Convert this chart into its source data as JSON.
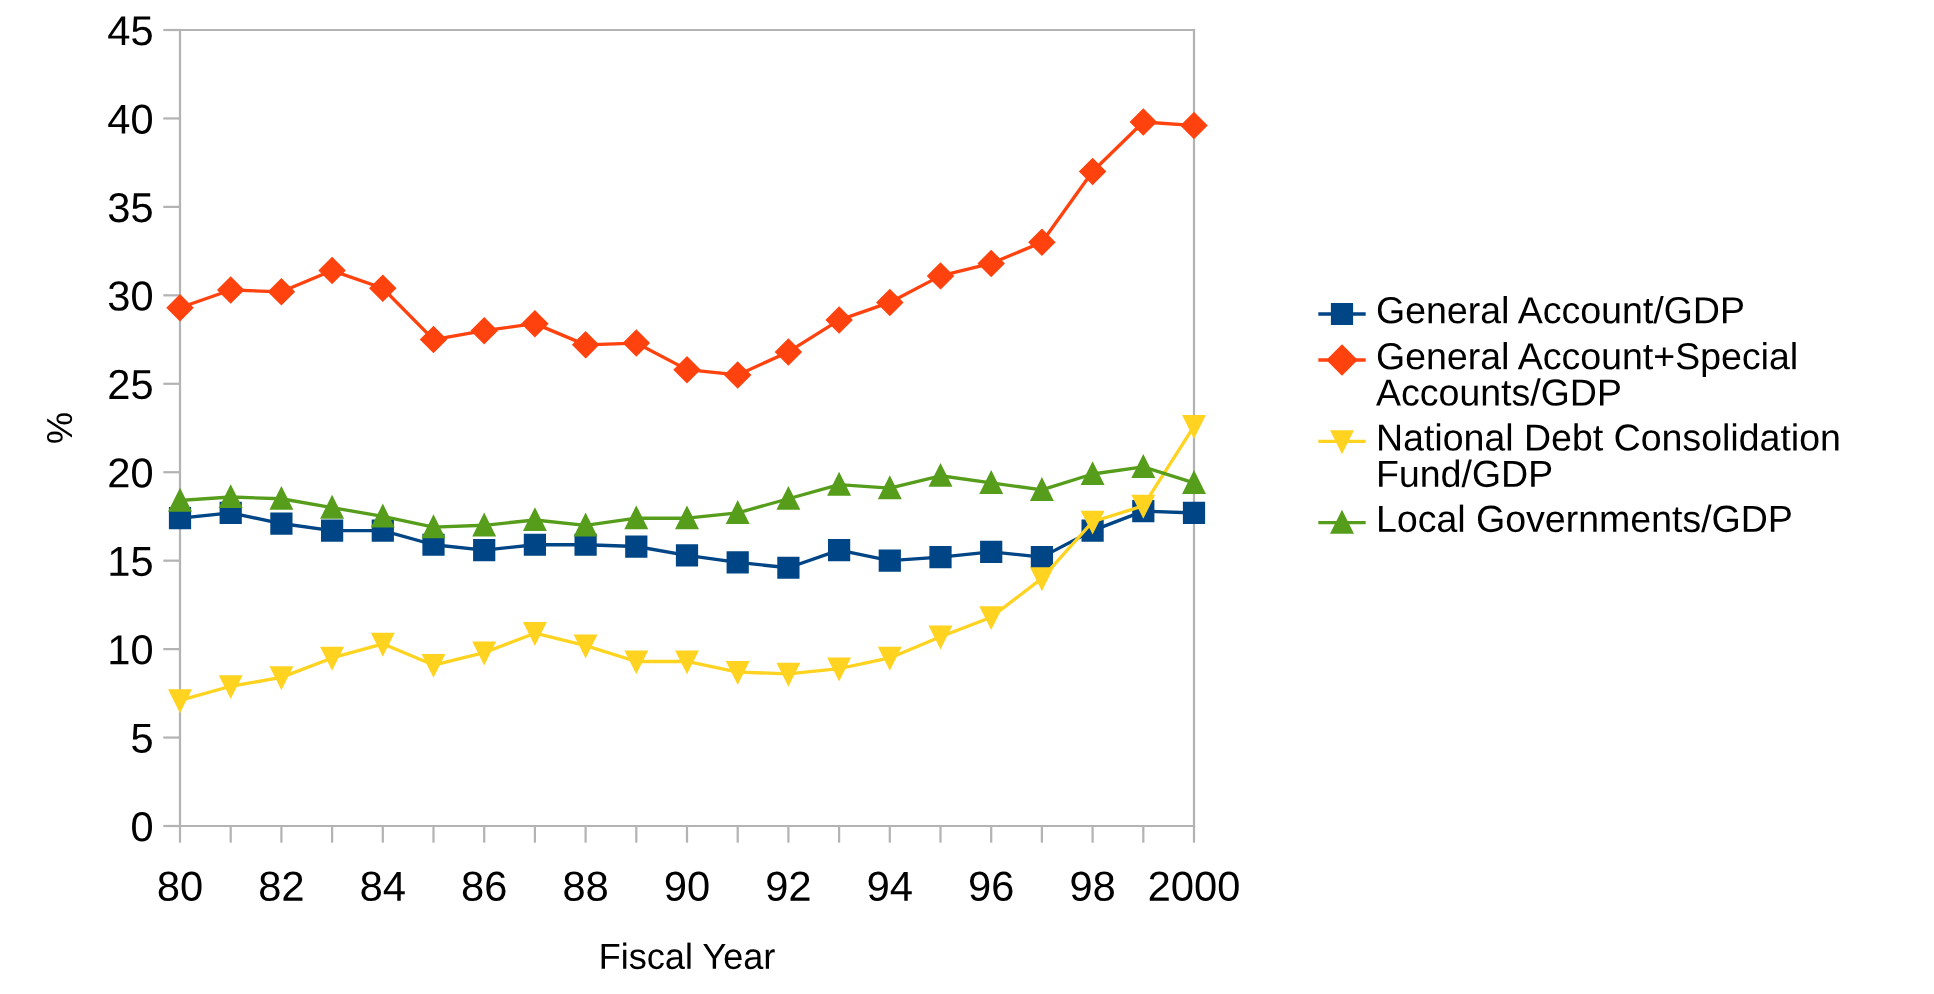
{
  "chart_data": {
    "type": "line",
    "xlabel": "Fiscal Year",
    "ylabel": "%",
    "categories": [
      "80",
      null,
      "82",
      null,
      "84",
      null,
      "86",
      null,
      "88",
      null,
      "90",
      null,
      "92",
      null,
      "94",
      null,
      "96",
      null,
      "98",
      null,
      "2000"
    ],
    "ylim": [
      0,
      45
    ],
    "yticks": [
      0,
      5,
      10,
      15,
      20,
      25,
      30,
      35,
      40,
      45
    ],
    "grid": false,
    "legend": "right",
    "line_style": "solid",
    "series": [
      {
        "name": "General Account/GDP",
        "color": "#004586",
        "marker": "square",
        "values": [
          17.4,
          17.7,
          17.1,
          16.7,
          16.7,
          15.9,
          15.6,
          15.9,
          15.9,
          15.8,
          15.3,
          14.9,
          14.6,
          15.6,
          15.0,
          15.2,
          15.5,
          15.2,
          16.7,
          17.8,
          17.7
        ]
      },
      {
        "name": "General Account+Special Accounts/GDP",
        "color": "#ff420e",
        "marker": "diamond",
        "values": [
          29.3,
          30.3,
          30.2,
          31.4,
          30.4,
          27.5,
          28.0,
          28.4,
          27.2,
          27.3,
          25.8,
          25.5,
          26.8,
          28.6,
          29.6,
          31.1,
          31.8,
          33.0,
          37.0,
          39.8,
          39.6
        ]
      },
      {
        "name": "National Debt Consolidation Fund/GDP",
        "color": "#ffd320",
        "marker": "triangle_down",
        "values": [
          7.1,
          7.9,
          8.4,
          9.5,
          10.3,
          9.1,
          9.8,
          10.9,
          10.2,
          9.3,
          9.3,
          8.7,
          8.6,
          8.9,
          9.5,
          10.7,
          11.8,
          14.0,
          17.2,
          18.1,
          22.6
        ]
      },
      {
        "name": "Local Governments/GDP",
        "color": "#579d1c",
        "marker": "triangle",
        "values": [
          18.4,
          18.6,
          18.5,
          18.0,
          17.5,
          16.9,
          17.0,
          17.3,
          17.0,
          17.4,
          17.4,
          17.7,
          18.5,
          19.3,
          19.1,
          19.8,
          19.4,
          19.0,
          19.9,
          20.3,
          19.4
        ]
      }
    ]
  }
}
